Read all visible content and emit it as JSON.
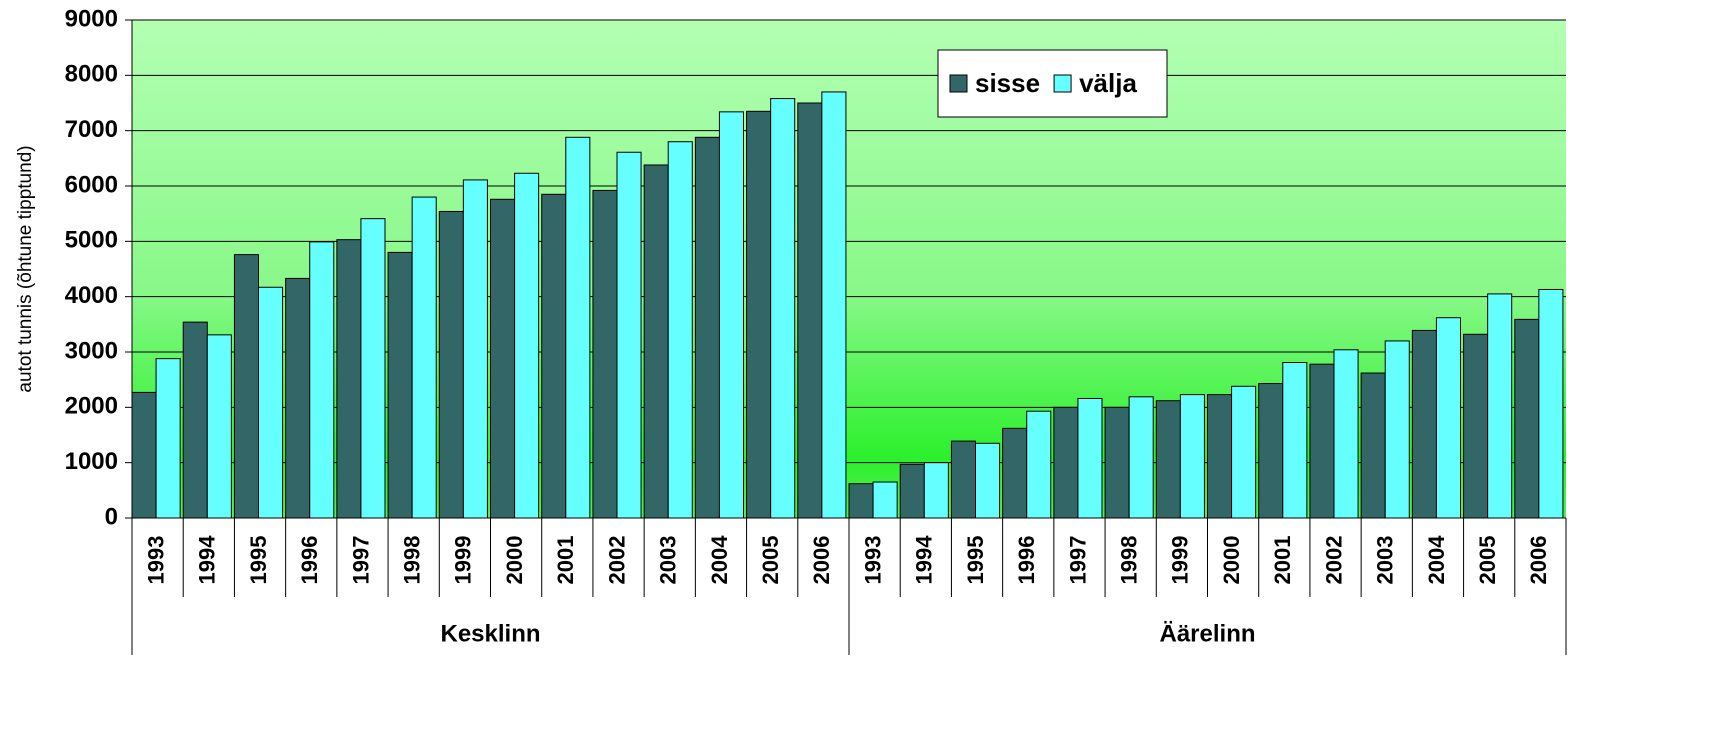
{
  "chart_data": {
    "type": "bar",
    "y_label": "autot tunnis (õhtune tipptund)",
    "categories": [
      "1993",
      "1994",
      "1995",
      "1996",
      "1997",
      "1998",
      "1999",
      "2000",
      "2001",
      "2002",
      "2003",
      "2004",
      "2005",
      "2006",
      "1993",
      "1994",
      "1995",
      "1996",
      "1997",
      "1998",
      "1999",
      "2000",
      "2001",
      "2002",
      "2003",
      "2004",
      "2005",
      "2006"
    ],
    "category_groups": [
      "Kesklinn",
      "Äärelinn"
    ],
    "series": [
      {
        "name": "sisse",
        "color": "#336666",
        "values": [
          2270,
          3540,
          4760,
          4330,
          5030,
          4800,
          5540,
          5760,
          5850,
          5920,
          6380,
          6880,
          7350,
          7500,
          620,
          970,
          1390,
          1620,
          2000,
          2000,
          2120,
          2230,
          2430,
          2780,
          2620,
          3390,
          3320,
          3590
        ]
      },
      {
        "name": "välja",
        "color": "#66ffff",
        "values": [
          2880,
          3310,
          4170,
          4990,
          5410,
          5800,
          6110,
          6230,
          6880,
          6610,
          6800,
          7340,
          7580,
          7700,
          650,
          1000,
          1350,
          1930,
          2160,
          2190,
          2230,
          2380,
          2810,
          3040,
          3200,
          3620,
          4050,
          4130
        ]
      }
    ],
    "ylim": [
      0,
      9000
    ],
    "yticks": [
      0,
      1000,
      2000,
      3000,
      4000,
      5000,
      6000,
      7000,
      8000,
      9000
    ],
    "grid": true,
    "legend": "top-center"
  }
}
